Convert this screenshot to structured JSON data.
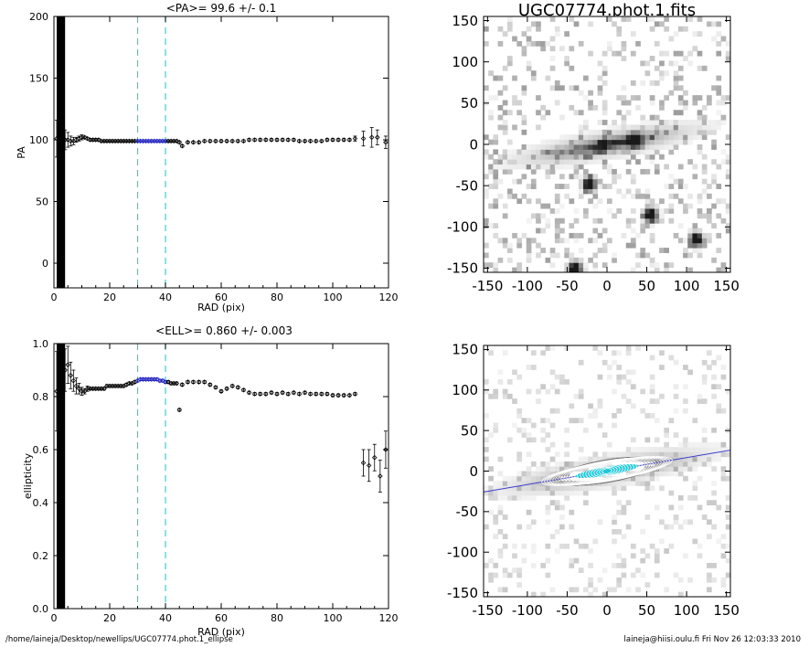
{
  "footer": {
    "path": "/home/laineja/Desktop/newellips/UGC07774.phot.1_ellipse",
    "user_date": "laineja@hiisi.oulu.fi  Fri Nov 26 12:03:33 2010"
  },
  "colors": {
    "axes": "#000000",
    "guide": "#20d8d8",
    "highlight": "#2020c0",
    "contour": "#ffffff",
    "fit_line": "#3a3acc",
    "model_fill": "#1fc8d8"
  },
  "chart_data": [
    {
      "type": "scatter",
      "panel": "pa-profile",
      "title": "<PA>=  99.6 +/-   0.1",
      "xlabel": "RAD (pix)",
      "ylabel": "PA",
      "xlim": [
        0,
        120
      ],
      "ylim": [
        -20,
        200
      ],
      "xticks": [
        0,
        20,
        40,
        60,
        80,
        100,
        120
      ],
      "yticks": [
        0,
        50,
        100,
        150,
        200
      ],
      "guides_x": [
        30,
        40
      ],
      "dense_band_x": [
        1,
        4
      ],
      "series": [
        {
          "x": [
            1,
            2,
            3,
            4,
            5,
            6,
            7,
            8,
            9,
            10,
            11,
            12,
            13,
            14,
            15,
            16,
            17,
            18,
            19,
            20,
            21,
            22,
            23,
            24,
            25,
            26,
            27,
            28,
            29,
            30,
            31,
            32,
            33,
            34,
            35,
            36,
            37,
            38,
            39,
            40,
            41,
            42,
            43,
            44,
            45,
            46,
            48,
            50,
            52,
            54,
            56,
            58,
            60,
            62,
            64,
            66,
            68,
            70,
            72,
            74,
            76,
            78,
            80,
            82,
            84,
            86,
            88,
            90,
            92,
            94,
            96,
            98,
            100,
            102,
            104,
            106,
            108,
            111,
            114,
            116,
            119
          ],
          "y": [
            101,
            102,
            101,
            100,
            100,
            99,
            99,
            100,
            101,
            102,
            102,
            101,
            100,
            100,
            100,
            100,
            99,
            99,
            99,
            99,
            99,
            99,
            99,
            99,
            99,
            99,
            99,
            99,
            99,
            99,
            99,
            99,
            99,
            99,
            99,
            99,
            99,
            99,
            99,
            99,
            99,
            99,
            99,
            99,
            98,
            95,
            98,
            98,
            98,
            99,
            99,
            99,
            99,
            99,
            99,
            99,
            99,
            100,
            100,
            100,
            100,
            100,
            100,
            100,
            100,
            100,
            99,
            99,
            99,
            99,
            99,
            100,
            100,
            100,
            100,
            100,
            101,
            101,
            102,
            102,
            98
          ],
          "err": [
            15,
            12,
            10,
            8,
            6,
            4,
            3,
            2,
            2,
            2,
            1,
            1,
            1,
            1,
            1,
            1,
            1,
            1,
            1,
            1,
            1,
            1,
            1,
            1,
            1,
            1,
            1,
            1,
            1,
            1,
            1,
            1,
            1,
            1,
            1,
            1,
            1,
            1,
            1,
            1,
            1,
            1,
            1,
            1,
            1,
            1,
            1,
            1,
            1,
            1,
            1,
            1,
            1,
            1,
            1,
            1,
            1,
            1,
            1,
            1,
            1,
            1,
            1,
            1,
            1,
            1,
            1,
            1,
            1,
            1,
            1,
            1,
            1,
            1,
            1,
            1,
            2,
            6,
            8,
            6,
            5
          ]
        }
      ]
    },
    {
      "type": "scatter",
      "panel": "ellipticity-profile",
      "title": "<ELL>= 0.860 +/-  0.003",
      "xlabel": "RAD (pix)",
      "ylabel": "ellipticity",
      "xlim": [
        0,
        120
      ],
      "ylim": [
        0,
        1
      ],
      "xticks": [
        0,
        20,
        40,
        60,
        80,
        100,
        120
      ],
      "yticks": [
        0.0,
        0.2,
        0.4,
        0.6,
        0.8,
        1.0
      ],
      "guides_x": [
        30,
        40
      ],
      "dense_band_x": [
        1,
        4
      ],
      "series": [
        {
          "x": [
            1,
            2,
            3,
            4,
            5,
            6,
            7,
            8,
            9,
            10,
            11,
            12,
            13,
            14,
            15,
            16,
            17,
            18,
            19,
            20,
            21,
            22,
            23,
            24,
            25,
            26,
            27,
            28,
            29,
            30,
            31,
            32,
            33,
            34,
            35,
            36,
            37,
            38,
            39,
            40,
            41,
            42,
            43,
            44,
            45,
            46,
            48,
            50,
            52,
            54,
            56,
            58,
            60,
            62,
            64,
            66,
            68,
            70,
            72,
            74,
            76,
            78,
            80,
            82,
            84,
            86,
            88,
            90,
            92,
            94,
            96,
            98,
            100,
            102,
            104,
            106,
            108,
            111,
            113,
            115,
            117,
            119
          ],
          "y": [
            0.82,
            0.84,
            0.88,
            0.9,
            0.92,
            0.88,
            0.86,
            0.84,
            0.83,
            0.82,
            0.82,
            0.83,
            0.83,
            0.83,
            0.83,
            0.83,
            0.83,
            0.83,
            0.84,
            0.84,
            0.84,
            0.84,
            0.84,
            0.84,
            0.84,
            0.845,
            0.85,
            0.85,
            0.855,
            0.86,
            0.865,
            0.865,
            0.865,
            0.865,
            0.865,
            0.865,
            0.865,
            0.86,
            0.86,
            0.855,
            0.855,
            0.85,
            0.85,
            0.85,
            0.75,
            0.845,
            0.855,
            0.855,
            0.855,
            0.855,
            0.845,
            0.835,
            0.82,
            0.83,
            0.84,
            0.835,
            0.825,
            0.815,
            0.81,
            0.81,
            0.81,
            0.815,
            0.81,
            0.815,
            0.81,
            0.815,
            0.81,
            0.815,
            0.81,
            0.81,
            0.81,
            0.81,
            0.805,
            0.805,
            0.805,
            0.805,
            0.81,
            0.55,
            0.54,
            0.57,
            0.5,
            0.6
          ],
          "err": [
            0.15,
            0.12,
            0.1,
            0.08,
            0.07,
            0.05,
            0.04,
            0.03,
            0.02,
            0.015,
            0.01,
            0.01,
            0.005,
            0.005,
            0.005,
            0.005,
            0.005,
            0.005,
            0.005,
            0.005,
            0.005,
            0.005,
            0.005,
            0.005,
            0.005,
            0.005,
            0.005,
            0.005,
            0.005,
            0.005,
            0.005,
            0.005,
            0.005,
            0.005,
            0.005,
            0.005,
            0.005,
            0.005,
            0.005,
            0.005,
            0.005,
            0.005,
            0.005,
            0.005,
            0.005,
            0.005,
            0.005,
            0.005,
            0.005,
            0.005,
            0.005,
            0.005,
            0.005,
            0.005,
            0.005,
            0.005,
            0.005,
            0.005,
            0.005,
            0.005,
            0.005,
            0.005,
            0.005,
            0.005,
            0.005,
            0.005,
            0.005,
            0.005,
            0.005,
            0.005,
            0.005,
            0.005,
            0.005,
            0.005,
            0.005,
            0.005,
            0.005,
            0.05,
            0.06,
            0.05,
            0.06,
            0.07
          ]
        }
      ]
    },
    {
      "type": "heatmap",
      "panel": "galaxy-image",
      "title": "UGC07774.phot.1.fits",
      "xlim": [
        -155,
        155
      ],
      "ylim": [
        -155,
        155
      ],
      "xticks": [
        -150,
        -100,
        -50,
        0,
        50,
        100,
        150
      ],
      "yticks": [
        -150,
        -100,
        -50,
        0,
        50,
        100,
        150
      ],
      "galaxy": {
        "center": [
          0,
          0
        ],
        "semi_major": 110,
        "semi_minor": 14,
        "pa_deg": 99.6
      },
      "point_sources": [
        [
          -22,
          -48
        ],
        [
          55,
          -85
        ],
        [
          112,
          -115
        ],
        [
          -40,
          -150
        ],
        [
          35,
          5
        ]
      ]
    },
    {
      "type": "heatmap",
      "panel": "ellipse-overlay",
      "title": "",
      "xlim": [
        -155,
        155
      ],
      "ylim": [
        -155,
        155
      ],
      "xticks": [
        -150,
        -100,
        -50,
        0,
        50,
        100,
        150
      ],
      "yticks": [
        -150,
        -100,
        -50,
        0,
        50,
        100,
        150
      ],
      "ellipse_fit": {
        "center": [
          0,
          0
        ],
        "pa_deg": 99.6,
        "ellipticity": 0.86,
        "sma_max": 85
      },
      "major_axis_line": true
    }
  ]
}
